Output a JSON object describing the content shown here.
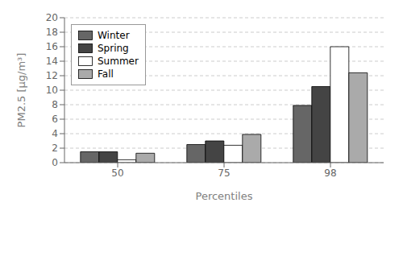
{
  "chart_data": {
    "type": "bar",
    "categories": [
      "50",
      "75",
      "98"
    ],
    "series": [
      {
        "name": "Winter",
        "color": "#666666",
        "values": [
          1.5,
          2.5,
          7.9
        ]
      },
      {
        "name": "Spring",
        "color": "#444444",
        "values": [
          1.5,
          3.0,
          10.5
        ]
      },
      {
        "name": "Summer",
        "color": "#ffffff",
        "values": [
          0.4,
          2.4,
          16.0
        ]
      },
      {
        "name": "Fall",
        "color": "#aaaaaa",
        "values": [
          1.3,
          3.9,
          12.4
        ]
      }
    ],
    "x_label": "Percentiles",
    "y_label": "PM2.5 [µg/m³]",
    "ylim": [
      0,
      20
    ],
    "yticks": [
      0,
      2,
      4,
      6,
      8,
      10,
      12,
      14,
      16,
      18,
      20
    ],
    "grid": true,
    "legend": "upper left"
  }
}
